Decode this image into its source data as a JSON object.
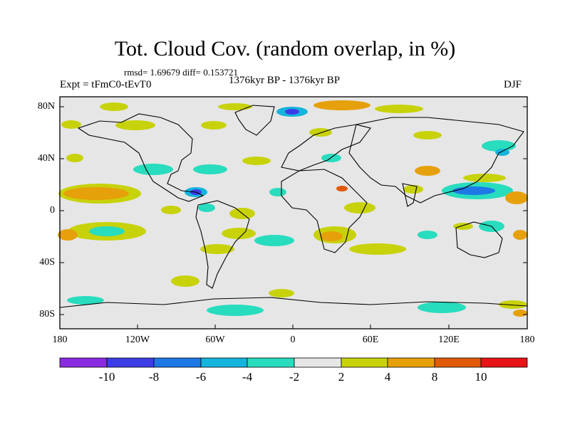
{
  "title": "Tot. Cloud Cov. (random overlap, in %)",
  "stats": "rmsd= 1.69679 diff= 0.153721",
  "experiment": "Expt = tFmC0-tEvT0",
  "period": "1376kyr BP - 1376kyr BP",
  "season": "DJF",
  "lat_labels": [
    "80N",
    "40N",
    "0",
    "40S",
    "80S"
  ],
  "lon_labels": [
    "180",
    "120W",
    "60W",
    "0",
    "60E",
    "120E",
    "180"
  ],
  "colorbar": {
    "labels": [
      "-10",
      "-8",
      "-6",
      "-4",
      "-2",
      "2",
      "4",
      "8",
      "10"
    ],
    "colors": [
      "#8a2be2",
      "#3c3ce6",
      "#1e78e6",
      "#14b4dc",
      "#28dcbe",
      "#e6e6e6",
      "#c8d20a",
      "#e6a00a",
      "#e05a0a",
      "#e61414"
    ]
  },
  "colors": {
    "background": "#e6e6e6",
    "frame": "#000000"
  }
}
